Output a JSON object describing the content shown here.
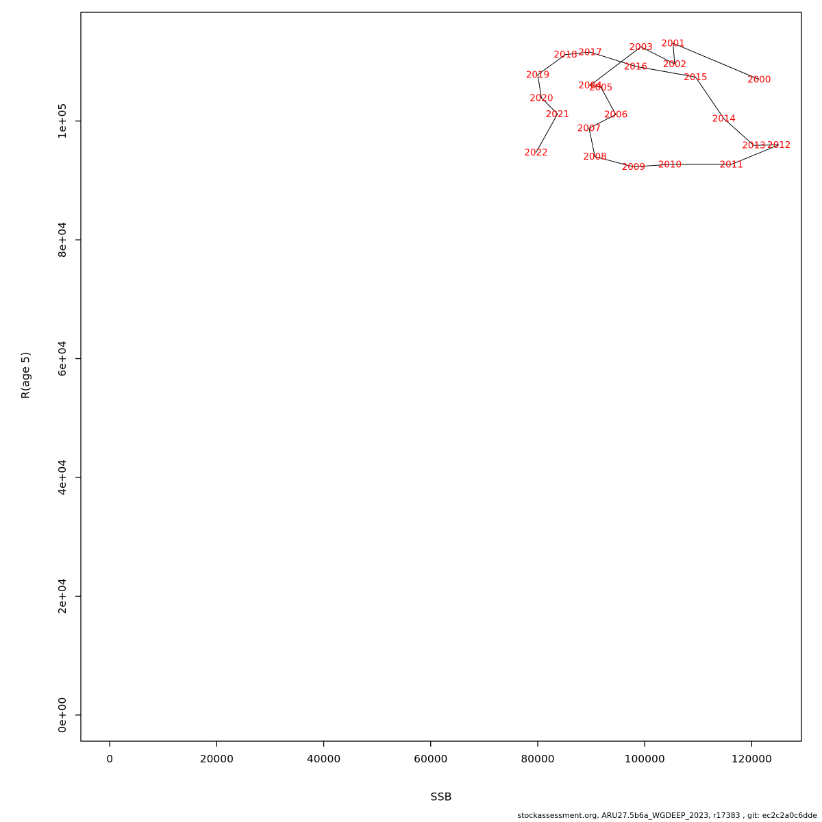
{
  "figure": {
    "xlabel": "SSB",
    "ylabel": "R(age 5)",
    "footer": "stockassessment.org, ARU27.5b6a_WGDEEP_2023, r17383 , git: ec2c2a0c6dde"
  },
  "chart_data": {
    "type": "line",
    "title": "",
    "xlabel": "SSB",
    "ylabel": "R(age 5)",
    "legend": "none",
    "grid": false,
    "label_color": "#ff0000",
    "line_color": "#000000",
    "x_ticks": [
      0,
      20000,
      40000,
      60000,
      80000,
      100000,
      120000
    ],
    "x_tick_labels": [
      "0",
      "20000",
      "40000",
      "60000",
      "80000",
      "100000",
      "120000"
    ],
    "y_ticks": [
      0,
      20000,
      40000,
      60000,
      80000,
      100000
    ],
    "y_tick_labels": [
      "0e+00",
      "2e+04",
      "4e+04",
      "6e+04",
      "8e+04",
      "1e+05"
    ],
    "x_range": [
      -5400,
      129300
    ],
    "y_range": [
      -4400,
      118300
    ],
    "points": [
      {
        "year": "2000",
        "ssb": 121400,
        "r": 107000
      },
      {
        "year": "2001",
        "ssb": 105300,
        "r": 113100
      },
      {
        "year": "2002",
        "ssb": 105600,
        "r": 109600
      },
      {
        "year": "2003",
        "ssb": 99300,
        "r": 112500
      },
      {
        "year": "2004",
        "ssb": 89800,
        "r": 106000
      },
      {
        "year": "2005",
        "ssb": 91800,
        "r": 105700
      },
      {
        "year": "2006",
        "ssb": 94600,
        "r": 101100
      },
      {
        "year": "2007",
        "ssb": 89600,
        "r": 98800
      },
      {
        "year": "2008",
        "ssb": 90700,
        "r": 94000
      },
      {
        "year": "2009",
        "ssb": 97900,
        "r": 92300
      },
      {
        "year": "2010",
        "ssb": 104700,
        "r": 92700
      },
      {
        "year": "2011",
        "ssb": 116200,
        "r": 92700
      },
      {
        "year": "2012",
        "ssb": 125100,
        "r": 96000
      },
      {
        "year": "2013",
        "ssb": 120400,
        "r": 95900
      },
      {
        "year": "2014",
        "ssb": 114800,
        "r": 100400
      },
      {
        "year": "2015",
        "ssb": 109500,
        "r": 107400
      },
      {
        "year": "2016",
        "ssb": 98300,
        "r": 109200
      },
      {
        "year": "2017",
        "ssb": 89800,
        "r": 111600
      },
      {
        "year": "2018",
        "ssb": 85200,
        "r": 111200
      },
      {
        "year": "2019",
        "ssb": 80000,
        "r": 107800
      },
      {
        "year": "2020",
        "ssb": 80700,
        "r": 103900
      },
      {
        "year": "2021",
        "ssb": 83700,
        "r": 101200
      },
      {
        "year": "2022",
        "ssb": 79700,
        "r": 94700
      }
    ]
  }
}
